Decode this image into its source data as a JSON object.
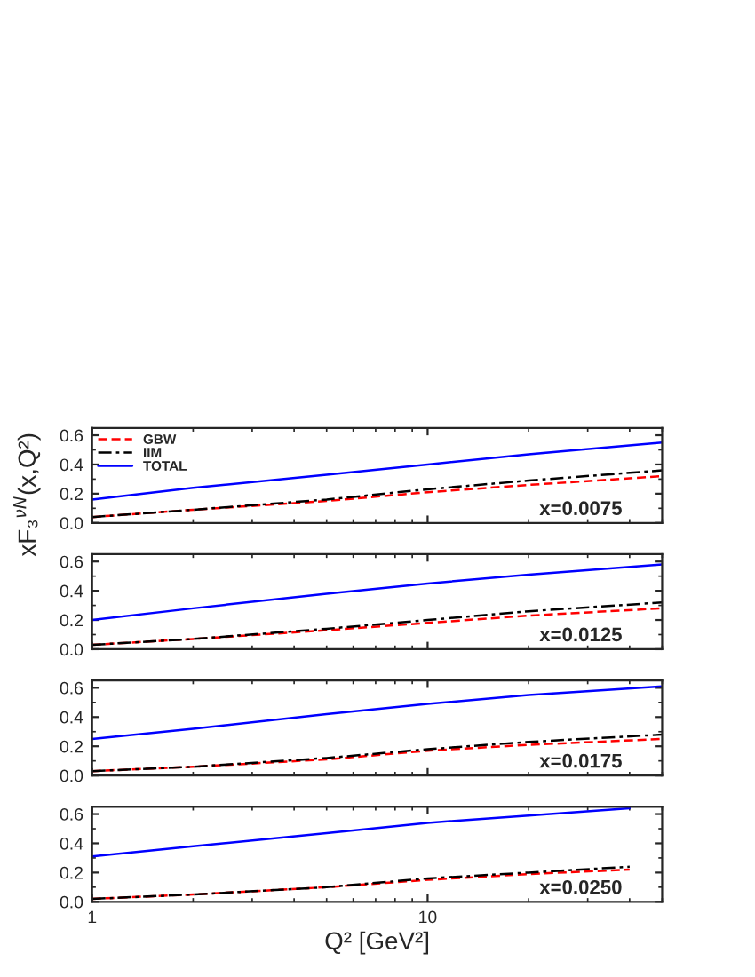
{
  "chart_data": [
    {
      "type": "line",
      "ylabel": "xF₃$^{νN}$(x,Q²)",
      "annotations": [
        "x=0.0075"
      ],
      "x": [
        1,
        2,
        5,
        10,
        20,
        50
      ],
      "log": "x",
      "xlim": [
        1,
        50
      ],
      "xticks": [
        1,
        10
      ],
      "ylim": [
        0,
        0.65
      ],
      "yticks": [
        {
          "value": 0,
          "label": "0.0"
        },
        {
          "value": 0.2,
          "label": "0.2"
        },
        {
          "value": 0.4,
          "label": "0.4"
        },
        {
          "value": 0.6,
          "label": "0.6"
        }
      ],
      "tick_labels": "y",
      "legend": "top left",
      "grid": false,
      "series": [
        {
          "name": "GBW",
          "color": "#ff0000",
          "line_style": "dashed",
          "values": [
            0.04,
            0.09,
            0.15,
            0.21,
            0.26,
            0.32
          ]
        },
        {
          "name": "IIM",
          "color": "#000000",
          "line_style": "dashdot",
          "values": [
            0.04,
            0.09,
            0.16,
            0.23,
            0.29,
            0.36
          ]
        },
        {
          "name": "TOTAL",
          "color": "#0000ff",
          "line_style": "solid",
          "values": [
            0.16,
            0.24,
            0.33,
            0.4,
            0.47,
            0.55
          ]
        }
      ]
    },
    {
      "type": "line",
      "annotations": [
        "x=0.0125"
      ],
      "x": [
        1,
        2,
        5,
        10,
        20,
        50
      ],
      "log": "x",
      "xlim": [
        1,
        50
      ],
      "xticks": [
        1,
        10
      ],
      "ylim": [
        0,
        0.65
      ],
      "yticks": [
        {
          "value": 0,
          "label": "0.0"
        },
        {
          "value": 0.2,
          "label": "0.2"
        },
        {
          "value": 0.4,
          "label": "0.4"
        },
        {
          "value": 0.6,
          "label": "0.6"
        }
      ],
      "tick_labels": "y",
      "grid": false,
      "series": [
        {
          "color": "#ff0000",
          "line_style": "dashed",
          "values": [
            0.03,
            0.07,
            0.13,
            0.18,
            0.23,
            0.28
          ]
        },
        {
          "color": "#000000",
          "line_style": "dashdot",
          "values": [
            0.03,
            0.07,
            0.14,
            0.2,
            0.26,
            0.32
          ]
        },
        {
          "color": "#0000ff",
          "line_style": "solid",
          "values": [
            0.2,
            0.28,
            0.38,
            0.45,
            0.51,
            0.58
          ]
        }
      ]
    },
    {
      "type": "line",
      "annotations": [
        "x=0.0175"
      ],
      "x": [
        1,
        2,
        5,
        10,
        20,
        50
      ],
      "log": "x",
      "xlim": [
        1,
        50
      ],
      "xticks": [
        1,
        10
      ],
      "ylim": [
        0,
        0.65
      ],
      "yticks": [
        {
          "value": 0,
          "label": "0.0"
        },
        {
          "value": 0.2,
          "label": "0.2"
        },
        {
          "value": 0.4,
          "label": "0.4"
        },
        {
          "value": 0.6,
          "label": "0.6"
        }
      ],
      "tick_labels": "y",
      "grid": false,
      "series": [
        {
          "color": "#ff0000",
          "line_style": "dashed",
          "values": [
            0.03,
            0.06,
            0.11,
            0.17,
            0.21,
            0.25
          ]
        },
        {
          "color": "#000000",
          "line_style": "dashdot",
          "values": [
            0.03,
            0.06,
            0.12,
            0.18,
            0.23,
            0.28
          ]
        },
        {
          "color": "#0000ff",
          "line_style": "solid",
          "values": [
            0.25,
            0.32,
            0.42,
            0.49,
            0.55,
            0.61
          ]
        }
      ]
    },
    {
      "type": "line",
      "xlabel": "Q² [GeV²]",
      "annotations": [
        "x=0.0250"
      ],
      "x": [
        1,
        2,
        5,
        10,
        20,
        40
      ],
      "log": "x",
      "xlim": [
        1,
        50
      ],
      "xticks": [
        1,
        10
      ],
      "ylim": [
        0,
        0.65
      ],
      "yticks": [
        {
          "value": 0,
          "label": "0.0"
        },
        {
          "value": 0.2,
          "label": "0.2"
        },
        {
          "value": 0.4,
          "label": "0.4"
        },
        {
          "value": 0.6,
          "label": "0.6"
        }
      ],
      "grid": false,
      "series": [
        {
          "color": "#ff0000",
          "line_style": "dashed",
          "values": [
            0.02,
            0.05,
            0.1,
            0.15,
            0.19,
            0.22
          ]
        },
        {
          "color": "#000000",
          "line_style": "dashdot",
          "values": [
            0.02,
            0.05,
            0.1,
            0.16,
            0.2,
            0.24
          ]
        },
        {
          "color": "#0000ff",
          "line_style": "solid",
          "values": [
            0.31,
            0.38,
            0.47,
            0.54,
            0.59,
            0.64
          ]
        }
      ]
    }
  ]
}
